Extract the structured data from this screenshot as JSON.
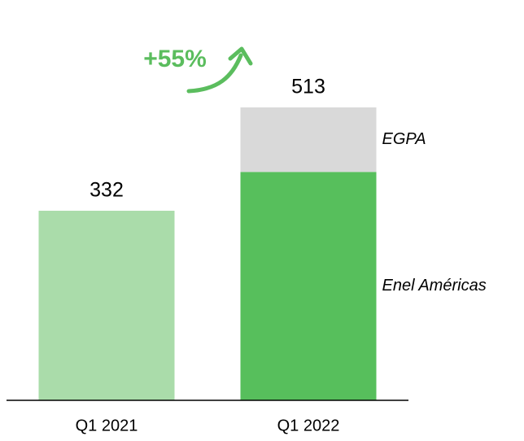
{
  "chart_data": {
    "type": "bar",
    "stacked": true,
    "categories": [
      "Q1 2021",
      "Q1 2022"
    ],
    "series": [
      {
        "name": "Enel Américas",
        "color": "#57bf5c",
        "colors": [
          "#aadcaa",
          "#57bf5c"
        ],
        "values": [
          332,
          400
        ]
      },
      {
        "name": "EGPA",
        "color": "#d9d9d9",
        "values": [
          null,
          113
        ]
      }
    ],
    "totals": [
      332,
      513
    ],
    "annotation": "+55%"
  }
}
